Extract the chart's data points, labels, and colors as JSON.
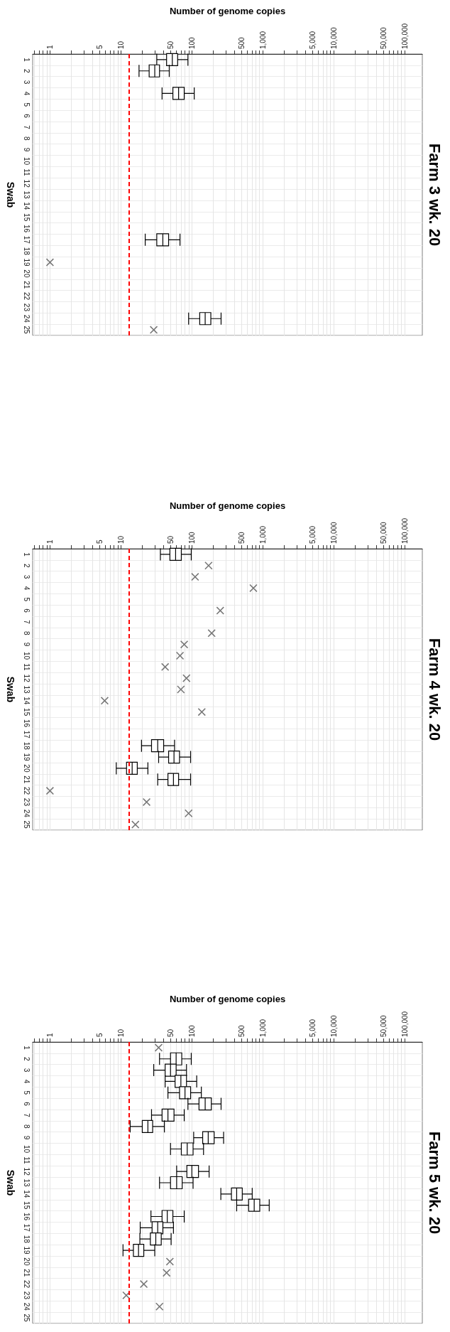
{
  "chart_data": [
    {
      "type": "box",
      "orientation": "horizontal",
      "title": "Farm 3 wk. 20",
      "xlabel": "Number of genome copies",
      "ylabel": "Swab",
      "categories": [
        "1",
        "2",
        "3",
        "4",
        "5",
        "6",
        "7",
        "8",
        "9",
        "10",
        "11",
        "12",
        "13",
        "14",
        "15",
        "16",
        "17",
        "18",
        "19",
        "20",
        "21",
        "22",
        "23",
        "24",
        "25"
      ],
      "log": "x",
      "grid": true,
      "marker": "cross",
      "xlim": [
        0.57,
        177000
      ],
      "xticks": [
        {
          "value": 0.6,
          "label": null
        },
        {
          "value": 0.7,
          "label": null
        },
        {
          "value": 0.8,
          "label": null
        },
        {
          "value": 0.9,
          "label": null
        },
        1,
        {
          "value": 2,
          "label": null
        },
        {
          "value": 3,
          "label": null
        },
        {
          "value": 4,
          "label": null
        },
        5,
        {
          "value": 6,
          "label": null
        },
        {
          "value": 7,
          "label": null
        },
        {
          "value": 8,
          "label": null
        },
        {
          "value": 9,
          "label": null
        },
        10,
        {
          "value": 20,
          "label": null
        },
        {
          "value": 30,
          "label": null
        },
        {
          "value": 40,
          "label": null
        },
        50,
        {
          "value": 60,
          "label": null
        },
        {
          "value": 70,
          "label": null
        },
        {
          "value": 80,
          "label": null
        },
        {
          "value": 90,
          "label": null
        },
        100,
        {
          "value": 200,
          "label": null
        },
        {
          "value": 300,
          "label": null
        },
        {
          "value": 400,
          "label": null
        },
        500,
        {
          "value": 600,
          "label": null
        },
        {
          "value": 700,
          "label": null
        },
        {
          "value": 800,
          "label": null
        },
        {
          "value": 900,
          "label": null
        },
        {
          "value": 1000,
          "label": "1,000"
        },
        {
          "value": 2000,
          "label": null
        },
        {
          "value": 3000,
          "label": null
        },
        {
          "value": 4000,
          "label": null
        },
        {
          "value": 5000,
          "label": "5,000"
        },
        {
          "value": 6000,
          "label": null
        },
        {
          "value": 7000,
          "label": null
        },
        {
          "value": 8000,
          "label": null
        },
        {
          "value": 9000,
          "label": null
        },
        {
          "value": 10000,
          "label": "10,000"
        },
        {
          "value": 20000,
          "label": null
        },
        {
          "value": 30000,
          "label": null
        },
        {
          "value": 40000,
          "label": null
        },
        {
          "value": 50000,
          "label": "50,000"
        },
        {
          "value": 60000,
          "label": null
        },
        {
          "value": 70000,
          "label": null
        },
        {
          "value": 80000,
          "label": null
        },
        {
          "value": 90000,
          "label": null
        },
        {
          "value": 100000,
          "label": "100,000"
        }
      ],
      "ref_lines": [
        {
          "axis": "x",
          "value": 13,
          "color": "#ff0000",
          "line_style": "dashed"
        }
      ],
      "series": [
        {
          "color": "#000000",
          "boxes": [
            {
              "low": 32,
              "q1": 44,
              "median": 53,
              "q3": 63,
              "high": 88
            },
            {
              "low": 18,
              "q1": 25,
              "median": 30,
              "q3": 35,
              "high": 48
            },
            null,
            {
              "low": 38,
              "q1": 54,
              "median": 65,
              "q3": 78,
              "high": 108
            },
            null,
            null,
            null,
            null,
            null,
            null,
            null,
            null,
            null,
            null,
            null,
            null,
            {
              "low": 22,
              "q1": 32,
              "median": 39,
              "q3": 47,
              "high": 68
            },
            null,
            null,
            null,
            null,
            null,
            null,
            {
              "low": 90,
              "q1": 129,
              "median": 154,
              "q3": 185,
              "high": 258
            },
            null
          ]
        },
        {
          "type": "scatter",
          "color": "#555555",
          "values": [
            null,
            null,
            null,
            null,
            null,
            null,
            null,
            null,
            null,
            null,
            null,
            null,
            null,
            null,
            null,
            null,
            null,
            null,
            1,
            null,
            null,
            null,
            null,
            null,
            29
          ]
        }
      ]
    },
    {
      "type": "box",
      "orientation": "horizontal",
      "title": "Farm 4 wk. 20",
      "xlabel": "Number of genome copies",
      "ylabel": "Swab",
      "categories": [
        "1",
        "2",
        "3",
        "4",
        "5",
        "6",
        "7",
        "8",
        "9",
        "10",
        "11",
        "12",
        "13",
        "14",
        "15",
        "16",
        "17",
        "18",
        "19",
        "20",
        "21",
        "22",
        "23",
        "24",
        "25"
      ],
      "log": "x",
      "grid": true,
      "marker": "cross",
      "xlim": [
        0.57,
        177000
      ],
      "xticks": [
        {
          "value": 0.6,
          "label": null
        },
        {
          "value": 0.7,
          "label": null
        },
        {
          "value": 0.8,
          "label": null
        },
        {
          "value": 0.9,
          "label": null
        },
        1,
        {
          "value": 2,
          "label": null
        },
        {
          "value": 3,
          "label": null
        },
        {
          "value": 4,
          "label": null
        },
        5,
        {
          "value": 6,
          "label": null
        },
        {
          "value": 7,
          "label": null
        },
        {
          "value": 8,
          "label": null
        },
        {
          "value": 9,
          "label": null
        },
        10,
        {
          "value": 20,
          "label": null
        },
        {
          "value": 30,
          "label": null
        },
        {
          "value": 40,
          "label": null
        },
        50,
        {
          "value": 60,
          "label": null
        },
        {
          "value": 70,
          "label": null
        },
        {
          "value": 80,
          "label": null
        },
        {
          "value": 90,
          "label": null
        },
        100,
        {
          "value": 200,
          "label": null
        },
        {
          "value": 300,
          "label": null
        },
        {
          "value": 400,
          "label": null
        },
        500,
        {
          "value": 600,
          "label": null
        },
        {
          "value": 700,
          "label": null
        },
        {
          "value": 800,
          "label": null
        },
        {
          "value": 900,
          "label": null
        },
        {
          "value": 1000,
          "label": "1,000"
        },
        {
          "value": 2000,
          "label": null
        },
        {
          "value": 3000,
          "label": null
        },
        {
          "value": 4000,
          "label": null
        },
        {
          "value": 5000,
          "label": "5,000"
        },
        {
          "value": 6000,
          "label": null
        },
        {
          "value": 7000,
          "label": null
        },
        {
          "value": 8000,
          "label": null
        },
        {
          "value": 9000,
          "label": null
        },
        {
          "value": 10000,
          "label": "10,000"
        },
        {
          "value": 20000,
          "label": null
        },
        {
          "value": 30000,
          "label": null
        },
        {
          "value": 40000,
          "label": null
        },
        {
          "value": 50000,
          "label": "50,000"
        },
        {
          "value": 60000,
          "label": null
        },
        {
          "value": 70000,
          "label": null
        },
        {
          "value": 80000,
          "label": null
        },
        {
          "value": 90000,
          "label": null
        },
        {
          "value": 100000,
          "label": "100,000"
        }
      ],
      "ref_lines": [
        {
          "axis": "x",
          "value": 13,
          "color": "#ff0000",
          "line_style": "dashed"
        }
      ],
      "series": [
        {
          "color": "#000000",
          "boxes": [
            {
              "low": 36,
              "q1": 49,
              "median": 59,
              "q3": 71,
              "high": 98
            },
            null,
            null,
            null,
            null,
            null,
            null,
            null,
            null,
            null,
            null,
            null,
            null,
            null,
            null,
            null,
            null,
            {
              "low": 19.5,
              "q1": 27,
              "median": 33,
              "q3": 40,
              "high": 57
            },
            {
              "low": 34,
              "q1": 47,
              "median": 56,
              "q3": 67,
              "high": 96
            },
            {
              "low": 8.6,
              "q1": 12,
              "median": 14.4,
              "q3": 17,
              "high": 24
            },
            {
              "low": 33,
              "q1": 46,
              "median": 55,
              "q3": 65,
              "high": 96
            },
            null,
            null,
            null,
            null
          ]
        },
        {
          "type": "scatter",
          "color": "#555555",
          "values": [
            null,
            172,
            111,
            736,
            null,
            251,
            null,
            190,
            78,
            68,
            42,
            84,
            70,
            5.9,
            138,
            null,
            null,
            null,
            null,
            null,
            null,
            1,
            23,
            90,
            16
          ]
        }
      ]
    },
    {
      "type": "box",
      "orientation": "horizontal",
      "title": "Farm 5 wk. 20",
      "xlabel": "Number of genome copies",
      "ylabel": "Swab",
      "categories": [
        "1",
        "2",
        "3",
        "4",
        "5",
        "6",
        "7",
        "8",
        "9",
        "10",
        "11",
        "12",
        "13",
        "14",
        "15",
        "16",
        "17",
        "18",
        "19",
        "20",
        "21",
        "22",
        "23",
        "24",
        "25"
      ],
      "log": "x",
      "grid": true,
      "marker": "cross",
      "xlim": [
        0.57,
        177000
      ],
      "xticks": [
        {
          "value": 0.6,
          "label": null
        },
        {
          "value": 0.7,
          "label": null
        },
        {
          "value": 0.8,
          "label": null
        },
        {
          "value": 0.9,
          "label": null
        },
        1,
        {
          "value": 2,
          "label": null
        },
        {
          "value": 3,
          "label": null
        },
        {
          "value": 4,
          "label": null
        },
        5,
        {
          "value": 6,
          "label": null
        },
        {
          "value": 7,
          "label": null
        },
        {
          "value": 8,
          "label": null
        },
        {
          "value": 9,
          "label": null
        },
        10,
        {
          "value": 20,
          "label": null
        },
        {
          "value": 30,
          "label": null
        },
        {
          "value": 40,
          "label": null
        },
        50,
        {
          "value": 60,
          "label": null
        },
        {
          "value": 70,
          "label": null
        },
        {
          "value": 80,
          "label": null
        },
        {
          "value": 90,
          "label": null
        },
        100,
        {
          "value": 200,
          "label": null
        },
        {
          "value": 300,
          "label": null
        },
        {
          "value": 400,
          "label": null
        },
        500,
        {
          "value": 600,
          "label": null
        },
        {
          "value": 700,
          "label": null
        },
        {
          "value": 800,
          "label": null
        },
        {
          "value": 900,
          "label": null
        },
        {
          "value": 1000,
          "label": "1,000"
        },
        {
          "value": 2000,
          "label": null
        },
        {
          "value": 3000,
          "label": null
        },
        {
          "value": 4000,
          "label": null
        },
        {
          "value": 5000,
          "label": "5,000"
        },
        {
          "value": 6000,
          "label": null
        },
        {
          "value": 7000,
          "label": null
        },
        {
          "value": 8000,
          "label": null
        },
        {
          "value": 9000,
          "label": null
        },
        {
          "value": 10000,
          "label": "10,000"
        },
        {
          "value": 20000,
          "label": null
        },
        {
          "value": 30000,
          "label": null
        },
        {
          "value": 40000,
          "label": null
        },
        {
          "value": 50000,
          "label": "50,000"
        },
        {
          "value": 60000,
          "label": null
        },
        {
          "value": 70000,
          "label": null
        },
        {
          "value": 80000,
          "label": null
        },
        {
          "value": 90000,
          "label": null
        },
        {
          "value": 100000,
          "label": "100,000"
        }
      ],
      "ref_lines": [
        {
          "axis": "x",
          "value": 13,
          "color": "#ff0000",
          "line_style": "dashed"
        }
      ],
      "series": [
        {
          "color": "#000000",
          "boxes": [
            null,
            {
              "low": 35,
              "q1": 50,
              "median": 60,
              "q3": 72,
              "high": 98
            },
            {
              "low": 29,
              "q1": 42,
              "median": 50,
              "q3": 60,
              "high": 84
            },
            {
              "low": 42,
              "q1": 58,
              "median": 70,
              "q3": 84,
              "high": 117
            },
            {
              "low": 46,
              "q1": 67,
              "median": 80,
              "q3": 96,
              "high": 136
            },
            {
              "low": 88,
              "q1": 126,
              "median": 154,
              "q3": 188,
              "high": 258
            },
            {
              "low": 27,
              "q1": 38,
              "median": 46,
              "q3": 56,
              "high": 78
            },
            {
              "low": 13.5,
              "q1": 20,
              "median": 24,
              "q3": 28,
              "high": 41
            },
            {
              "low": 106,
              "q1": 142,
              "median": 170,
              "q3": 206,
              "high": 280
            },
            {
              "low": 50,
              "q1": 71,
              "median": 86,
              "q3": 104,
              "high": 146
            },
            null,
            {
              "low": 61,
              "q1": 85,
              "median": 100,
              "q3": 124,
              "high": 175
            },
            {
              "low": 35,
              "q1": 50,
              "median": 61,
              "q3": 73,
              "high": 104
            },
            {
              "low": 256,
              "q1": 361,
              "median": 428,
              "q3": 513,
              "high": 709
            },
            {
              "low": 428,
              "q1": 631,
              "median": 756,
              "q3": 905,
              "high": 1231
            },
            {
              "low": 26.5,
              "q1": 38,
              "median": 45,
              "q3": 54,
              "high": 78
            },
            {
              "low": 18.7,
              "q1": 27.5,
              "median": 33,
              "q3": 39,
              "high": 55
            },
            {
              "low": 18.5,
              "q1": 26,
              "median": 31,
              "q3": 37,
              "high": 51
            },
            {
              "low": 10.7,
              "q1": 15,
              "median": 17.7,
              "q3": 21,
              "high": 30
            },
            null,
            null,
            null,
            null,
            null,
            null
          ]
        },
        {
          "type": "scatter",
          "color": "#555555",
          "values": [
            34,
            null,
            null,
            null,
            null,
            null,
            null,
            null,
            null,
            null,
            null,
            null,
            null,
            null,
            null,
            null,
            null,
            null,
            null,
            49,
            44,
            21,
            11.9,
            35,
            null
          ]
        }
      ]
    }
  ]
}
